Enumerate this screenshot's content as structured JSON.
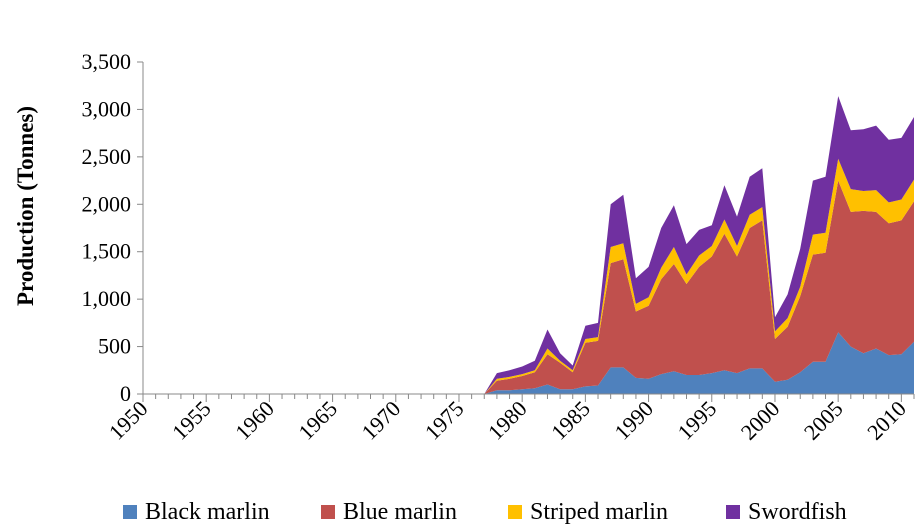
{
  "chart_data": {
    "type": "area",
    "stacked": true,
    "title": "",
    "xlabel": "",
    "ylabel": "Production (Tonnes)",
    "xlim": [
      1950,
      2011
    ],
    "ylim": [
      0,
      3500
    ],
    "yticks": [
      0,
      500,
      1000,
      1500,
      2000,
      2500,
      3000,
      3500
    ],
    "ytick_labels": [
      "0",
      "500",
      "1,000",
      "1,500",
      "2,000",
      "2,500",
      "3,000",
      "3,500"
    ],
    "xticks": [
      1950,
      1955,
      1960,
      1965,
      1970,
      1975,
      1980,
      1985,
      1990,
      1995,
      2000,
      2005,
      2010
    ],
    "xtick_labels": [
      "1950",
      "1955",
      "1960",
      "1965",
      "1970",
      "1975",
      "1980",
      "1985",
      "1990",
      "1995",
      "2000",
      "2005",
      "2010"
    ],
    "grid": false,
    "legend_position": "bottom",
    "x": [
      1977,
      1978,
      1979,
      1980,
      1981,
      1982,
      1983,
      1984,
      1985,
      1986,
      1987,
      1988,
      1989,
      1990,
      1991,
      1992,
      1993,
      1994,
      1995,
      1996,
      1997,
      1998,
      1999,
      2000,
      2001,
      2002,
      2003,
      2004,
      2005,
      2006,
      2007,
      2008,
      2009,
      2010,
      2011
    ],
    "series": [
      {
        "name": "Black marlin",
        "color": "#4f81bd",
        "values": [
          0,
          40,
          40,
          50,
          60,
          100,
          50,
          50,
          80,
          90,
          280,
          280,
          170,
          160,
          210,
          240,
          200,
          200,
          220,
          250,
          220,
          270,
          270,
          130,
          150,
          230,
          340,
          340,
          650,
          500,
          430,
          480,
          410,
          420,
          550
        ]
      },
      {
        "name": "Blue marlin",
        "color": "#c0504d",
        "values": [
          0,
          100,
          120,
          140,
          170,
          320,
          280,
          180,
          460,
          470,
          1100,
          1140,
          700,
          770,
          1000,
          1130,
          960,
          1140,
          1230,
          1440,
          1230,
          1480,
          1560,
          450,
          560,
          800,
          1130,
          1150,
          1600,
          1420,
          1500,
          1440,
          1390,
          1410,
          1480
        ]
      },
      {
        "name": "Striped marlin",
        "color": "#ffc000",
        "values": [
          0,
          20,
          20,
          20,
          20,
          60,
          20,
          20,
          40,
          40,
          170,
          170,
          80,
          90,
          120,
          180,
          100,
          120,
          110,
          150,
          110,
          140,
          140,
          80,
          90,
          100,
          210,
          210,
          230,
          240,
          210,
          230,
          220,
          220,
          230
        ]
      },
      {
        "name": "Swordfish",
        "color": "#7030a0",
        "values": [
          0,
          60,
          70,
          80,
          100,
          200,
          80,
          50,
          140,
          150,
          450,
          510,
          270,
          320,
          420,
          440,
          320,
          270,
          220,
          360,
          310,
          400,
          410,
          150,
          250,
          400,
          570,
          590,
          660,
          620,
          650,
          680,
          660,
          650,
          660
        ]
      }
    ]
  }
}
